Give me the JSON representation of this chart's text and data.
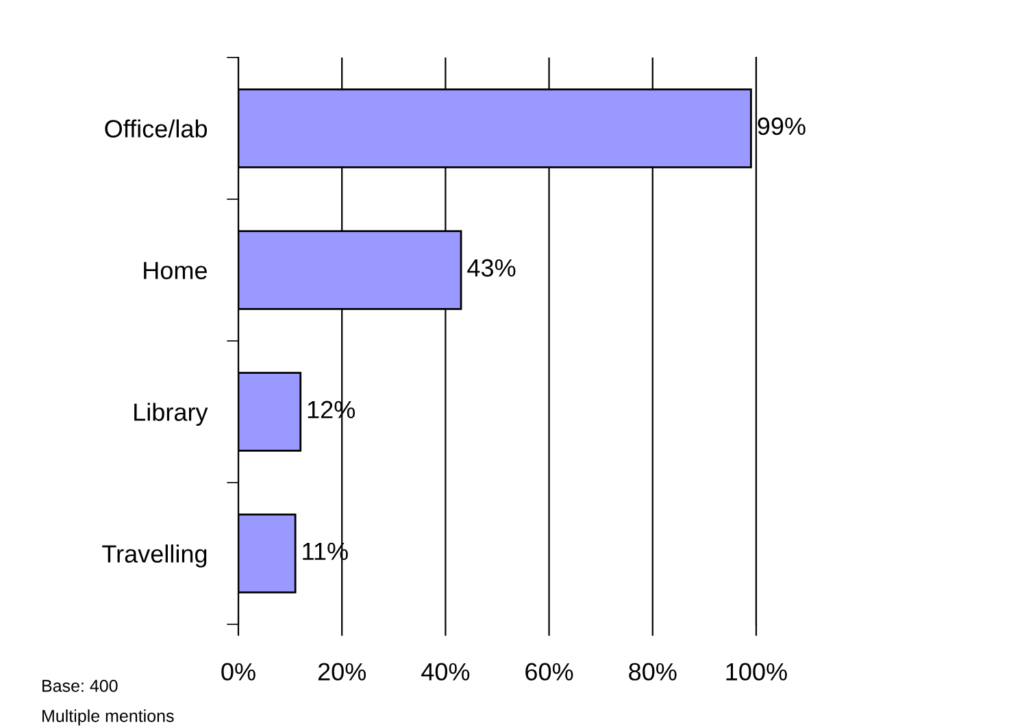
{
  "chart_data": {
    "type": "bar",
    "orientation": "horizontal",
    "categories": [
      "Office/lab",
      "Home",
      "Library",
      "Travelling"
    ],
    "values": [
      99,
      43,
      12,
      11
    ],
    "value_labels": [
      "99%",
      "43%",
      "12%",
      "11%"
    ],
    "color": "#9999ff",
    "xlim": [
      0,
      100
    ],
    "xticks": [
      {
        "value": 0,
        "label": "0%"
      },
      {
        "value": 20,
        "label": "20%"
      },
      {
        "value": 40,
        "label": "40%"
      },
      {
        "value": 60,
        "label": "60%"
      },
      {
        "value": 80,
        "label": "80%"
      },
      {
        "value": 100,
        "label": "100%"
      }
    ],
    "grid": "x",
    "legend": false,
    "annotations": [
      "Base: 400",
      "Multiple mentions"
    ]
  }
}
